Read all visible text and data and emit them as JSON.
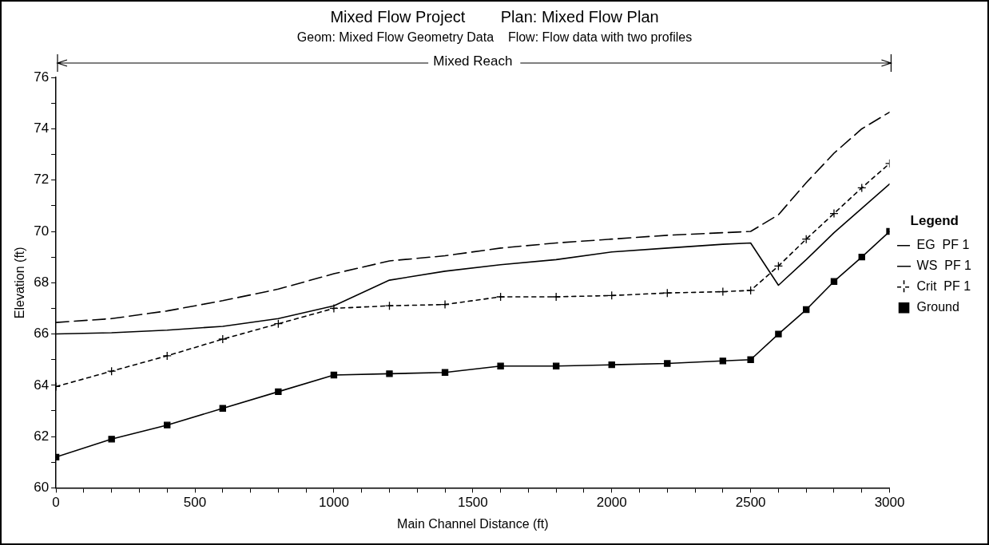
{
  "chart_data": {
    "type": "line",
    "title": "Mixed Flow Project        Plan: Mixed Flow Plan",
    "subtitle": "Geom: Mixed Flow Geometry Data    Flow: Flow data with two profiles",
    "xlabel": "Main Channel Distance (ft)",
    "ylabel": "Elevation (ft)",
    "legend_title": "Legend",
    "legend": "right",
    "grid": false,
    "annotations": [
      "Mixed Reach"
    ],
    "xlim": [
      0,
      3000
    ],
    "xticks": [
      0,
      {
        "value": 100,
        "label": null
      },
      {
        "value": 200,
        "label": null
      },
      {
        "value": 300,
        "label": null
      },
      {
        "value": 400,
        "label": null
      },
      500,
      {
        "value": 600,
        "label": null
      },
      {
        "value": 700,
        "label": null
      },
      {
        "value": 800,
        "label": null
      },
      {
        "value": 900,
        "label": null
      },
      1000,
      {
        "value": 1100,
        "label": null
      },
      {
        "value": 1200,
        "label": null
      },
      {
        "value": 1300,
        "label": null
      },
      {
        "value": 1400,
        "label": null
      },
      1500,
      {
        "value": 1600,
        "label": null
      },
      {
        "value": 1700,
        "label": null
      },
      {
        "value": 1800,
        "label": null
      },
      {
        "value": 1900,
        "label": null
      },
      2000,
      {
        "value": 2100,
        "label": null
      },
      {
        "value": 2200,
        "label": null
      },
      {
        "value": 2300,
        "label": null
      },
      {
        "value": 2400,
        "label": null
      },
      2500,
      {
        "value": 2600,
        "label": null
      },
      {
        "value": 2700,
        "label": null
      },
      {
        "value": 2800,
        "label": null
      },
      {
        "value": 2900,
        "label": null
      },
      3000
    ],
    "ylim": [
      60,
      76
    ],
    "yticks": [
      60,
      {
        "value": 61,
        "label": null
      },
      62,
      {
        "value": 63,
        "label": null
      },
      64,
      {
        "value": 65,
        "label": null
      },
      66,
      {
        "value": 67,
        "label": null
      },
      68,
      {
        "value": 69,
        "label": null
      },
      70,
      {
        "value": 71,
        "label": null
      },
      72,
      {
        "value": 73,
        "label": null
      },
      74,
      {
        "value": 75,
        "label": null
      },
      76
    ],
    "x": [
      0,
      200,
      400,
      600,
      800,
      1000,
      1200,
      1400,
      1600,
      1800,
      2000,
      2200,
      2400,
      2500,
      2600,
      2700,
      2800,
      2900,
      3000
    ],
    "series": [
      {
        "name": "EG  PF 1",
        "color": "#000000",
        "line_style": "dashed",
        "marker": "none",
        "values": [
          66.45,
          66.6,
          66.9,
          67.3,
          67.75,
          68.35,
          68.85,
          69.05,
          69.35,
          69.55,
          69.7,
          69.85,
          69.95,
          70.0,
          70.65,
          71.9,
          73.05,
          74.0,
          74.65
        ]
      },
      {
        "name": "WS  PF 1",
        "color": "#000000",
        "line_style": "solid",
        "marker": "none",
        "values": [
          66.0,
          66.05,
          66.15,
          66.3,
          66.6,
          67.1,
          68.1,
          68.45,
          68.7,
          68.9,
          69.2,
          69.35,
          69.5,
          69.55,
          67.9,
          68.9,
          69.95,
          70.9,
          71.85
        ]
      },
      {
        "name": "Crit  PF 1",
        "color": "#000000",
        "line_style": "dotted",
        "marker": "cross",
        "values": [
          63.95,
          64.55,
          65.15,
          65.8,
          66.4,
          67.0,
          67.1,
          67.15,
          67.45,
          67.45,
          67.5,
          67.6,
          67.65,
          67.7,
          68.65,
          69.7,
          70.7,
          71.7,
          72.65
        ]
      },
      {
        "name": "Ground",
        "color": "#000000",
        "line_style": "solid",
        "marker": "square",
        "values": [
          61.2,
          61.9,
          62.45,
          63.1,
          63.75,
          64.4,
          64.45,
          64.5,
          64.75,
          64.75,
          64.8,
          64.85,
          64.95,
          65.0,
          66.0,
          66.95,
          68.05,
          69.0,
          70.0
        ]
      }
    ]
  }
}
